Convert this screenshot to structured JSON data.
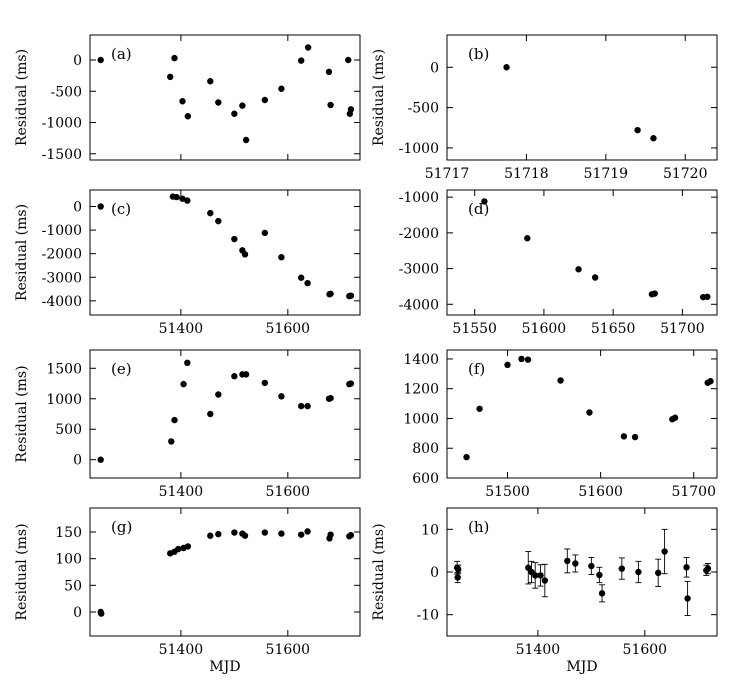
{
  "figure": {
    "xlabel_bottom": "MJD"
  },
  "chart_data": [
    {
      "id": "a",
      "type": "scatter",
      "label": "(a)",
      "ylabel": "Residual (ms)",
      "xlim": [
        51230,
        51735
      ],
      "ylim": [
        -1600,
        400
      ],
      "xticks": [
        51400,
        51600
      ],
      "xtick_labels": [
        "",
        ""
      ],
      "yticks": [
        -1500,
        -1000,
        -500,
        0
      ],
      "ytick_labels": [
        "-1500",
        "-1000",
        "-500",
        "0"
      ],
      "points": [
        {
          "x": 51250,
          "y": 0
        },
        {
          "x": 51380,
          "y": -270
        },
        {
          "x": 51388,
          "y": 30
        },
        {
          "x": 51403,
          "y": -660
        },
        {
          "x": 51413,
          "y": -900
        },
        {
          "x": 51455,
          "y": -340
        },
        {
          "x": 51470,
          "y": -680
        },
        {
          "x": 51500,
          "y": -860
        },
        {
          "x": 51515,
          "y": -730
        },
        {
          "x": 51522,
          "y": -1280
        },
        {
          "x": 51557,
          "y": -640
        },
        {
          "x": 51588,
          "y": -460
        },
        {
          "x": 51625,
          "y": -10
        },
        {
          "x": 51638,
          "y": 200
        },
        {
          "x": 51677,
          "y": -190
        },
        {
          "x": 51680,
          "y": -720
        },
        {
          "x": 51713,
          "y": 0
        },
        {
          "x": 51716,
          "y": -860
        },
        {
          "x": 51718,
          "y": -790
        }
      ]
    },
    {
      "id": "b",
      "type": "scatter",
      "label": "(b)",
      "ylabel": "Residual (ms)",
      "xlim": [
        51717,
        51720.4
      ],
      "ylim": [
        -1150,
        400
      ],
      "xticks": [
        51717,
        51718,
        51719,
        51720
      ],
      "xtick_labels": [
        "51717",
        "51718",
        "51719",
        "51720"
      ],
      "yticks": [
        -1000,
        -500,
        0
      ],
      "ytick_labels": [
        "-1000",
        "-500",
        "0"
      ],
      "points": [
        {
          "x": 51717.75,
          "y": 0
        },
        {
          "x": 51719.4,
          "y": -780
        },
        {
          "x": 51719.6,
          "y": -880
        }
      ]
    },
    {
      "id": "c",
      "type": "scatter",
      "label": "(c)",
      "ylabel": "Residual (ms)",
      "xlim": [
        51230,
        51735
      ],
      "ylim": [
        -4600,
        700
      ],
      "xticks": [
        51400,
        51600
      ],
      "xtick_labels": [
        "51400",
        "51600"
      ],
      "yticks": [
        -4000,
        -3000,
        -2000,
        -1000,
        0
      ],
      "ytick_labels": [
        "-4000",
        "-3000",
        "-2000",
        "-1000",
        "0"
      ],
      "points": [
        {
          "x": 51250,
          "y": 0
        },
        {
          "x": 51385,
          "y": 420
        },
        {
          "x": 51392,
          "y": 400
        },
        {
          "x": 51403,
          "y": 330
        },
        {
          "x": 51412,
          "y": 250
        },
        {
          "x": 51455,
          "y": -280
        },
        {
          "x": 51470,
          "y": -620
        },
        {
          "x": 51500,
          "y": -1380
        },
        {
          "x": 51515,
          "y": -1860
        },
        {
          "x": 51520,
          "y": -2030
        },
        {
          "x": 51557,
          "y": -1120
        },
        {
          "x": 51588,
          "y": -2150
        },
        {
          "x": 51625,
          "y": -3020
        },
        {
          "x": 51637,
          "y": -3250
        },
        {
          "x": 51678,
          "y": -3720
        },
        {
          "x": 51680,
          "y": -3700
        },
        {
          "x": 51715,
          "y": -3800
        },
        {
          "x": 51718,
          "y": -3780
        }
      ]
    },
    {
      "id": "d",
      "type": "scatter",
      "label": "(d)",
      "ylabel": "",
      "xlim": [
        51530,
        51725
      ],
      "ylim": [
        -4300,
        -800
      ],
      "xticks": [
        51550,
        51600,
        51650,
        51700
      ],
      "xtick_labels": [
        "51550",
        "51600",
        "51650",
        "51700"
      ],
      "yticks": [
        -4000,
        -3000,
        -2000,
        -1000
      ],
      "ytick_labels": [
        "-4000",
        "-3000",
        "-2000",
        "-1000"
      ],
      "points": [
        {
          "x": 51557,
          "y": -1120
        },
        {
          "x": 51588,
          "y": -2150
        },
        {
          "x": 51625,
          "y": -3020
        },
        {
          "x": 51637,
          "y": -3250
        },
        {
          "x": 51678,
          "y": -3720
        },
        {
          "x": 51680,
          "y": -3700
        },
        {
          "x": 51715,
          "y": -3800
        },
        {
          "x": 51718,
          "y": -3790
        }
      ]
    },
    {
      "id": "e",
      "type": "scatter",
      "label": "(e)",
      "ylabel": "Residual (ms)",
      "xlim": [
        51230,
        51735
      ],
      "ylim": [
        -300,
        1800
      ],
      "xticks": [
        51400,
        51600
      ],
      "xtick_labels": [
        "51400",
        "51600"
      ],
      "yticks": [
        0,
        500,
        1000,
        1500
      ],
      "ytick_labels": [
        "0",
        "500",
        "1000",
        "1500"
      ],
      "points": [
        {
          "x": 51250,
          "y": 0
        },
        {
          "x": 51382,
          "y": 300
        },
        {
          "x": 51388,
          "y": 650
        },
        {
          "x": 51405,
          "y": 1240
        },
        {
          "x": 51412,
          "y": 1590
        },
        {
          "x": 51455,
          "y": 750
        },
        {
          "x": 51470,
          "y": 1070
        },
        {
          "x": 51500,
          "y": 1370
        },
        {
          "x": 51515,
          "y": 1400
        },
        {
          "x": 51522,
          "y": 1400
        },
        {
          "x": 51557,
          "y": 1260
        },
        {
          "x": 51588,
          "y": 1040
        },
        {
          "x": 51625,
          "y": 880
        },
        {
          "x": 51637,
          "y": 880
        },
        {
          "x": 51677,
          "y": 1000
        },
        {
          "x": 51680,
          "y": 1010
        },
        {
          "x": 51715,
          "y": 1240
        },
        {
          "x": 51718,
          "y": 1250
        }
      ]
    },
    {
      "id": "f",
      "type": "scatter",
      "label": "(f)",
      "ylabel": "",
      "xlim": [
        51435,
        51725
      ],
      "ylim": [
        600,
        1460
      ],
      "xticks": [
        51500,
        51600,
        51700
      ],
      "xtick_labels": [
        "51500",
        "51600",
        "51700"
      ],
      "yticks": [
        600,
        800,
        1000,
        1200,
        1400
      ],
      "ytick_labels": [
        "600",
        "800",
        "1000",
        "1200",
        "1400"
      ],
      "points": [
        {
          "x": 51456,
          "y": 740
        },
        {
          "x": 51470,
          "y": 1065
        },
        {
          "x": 51500,
          "y": 1360
        },
        {
          "x": 51515,
          "y": 1400
        },
        {
          "x": 51522,
          "y": 1395
        },
        {
          "x": 51557,
          "y": 1255
        },
        {
          "x": 51588,
          "y": 1040
        },
        {
          "x": 51625,
          "y": 880
        },
        {
          "x": 51637,
          "y": 875
        },
        {
          "x": 51677,
          "y": 995
        },
        {
          "x": 51680,
          "y": 1005
        },
        {
          "x": 51715,
          "y": 1240
        },
        {
          "x": 51718,
          "y": 1250
        }
      ]
    },
    {
      "id": "g",
      "type": "scatter",
      "label": "(g)",
      "ylabel": "Residual (ms)",
      "xlim": [
        51230,
        51735
      ],
      "ylim": [
        -45,
        195
      ],
      "xticks": [
        51400,
        51600
      ],
      "xtick_labels": [
        "51400",
        "51600"
      ],
      "yticks": [
        0,
        50,
        100,
        150
      ],
      "ytick_labels": [
        "0",
        "50",
        "100",
        "150"
      ],
      "points": [
        {
          "x": 51250,
          "y": 0
        },
        {
          "x": 51251,
          "y": -3
        },
        {
          "x": 51380,
          "y": 110
        },
        {
          "x": 51388,
          "y": 113
        },
        {
          "x": 51395,
          "y": 118
        },
        {
          "x": 51405,
          "y": 120
        },
        {
          "x": 51413,
          "y": 123
        },
        {
          "x": 51455,
          "y": 143
        },
        {
          "x": 51470,
          "y": 146
        },
        {
          "x": 51500,
          "y": 149
        },
        {
          "x": 51515,
          "y": 147
        },
        {
          "x": 51520,
          "y": 143
        },
        {
          "x": 51557,
          "y": 149
        },
        {
          "x": 51588,
          "y": 147
        },
        {
          "x": 51625,
          "y": 145
        },
        {
          "x": 51637,
          "y": 151
        },
        {
          "x": 51678,
          "y": 138
        },
        {
          "x": 51680,
          "y": 145
        },
        {
          "x": 51715,
          "y": 142
        },
        {
          "x": 51718,
          "y": 144
        }
      ]
    },
    {
      "id": "h",
      "type": "scatter",
      "label": "(h)",
      "ylabel": "Residual (ms)",
      "xlim": [
        51230,
        51735
      ],
      "ylim": [
        -15,
        15
      ],
      "xticks": [
        51400,
        51600
      ],
      "xtick_labels": [
        "51400",
        "51600"
      ],
      "yticks": [
        -10,
        0,
        10
      ],
      "ytick_labels": [
        "-10",
        "0",
        "10"
      ],
      "points": [
        {
          "x": 51249,
          "y": 1.0,
          "err": 1.5
        },
        {
          "x": 51250,
          "y": -1.3,
          "err": 1.2
        },
        {
          "x": 51251,
          "y": 0.6,
          "err": 1.0
        },
        {
          "x": 51382,
          "y": 1.0,
          "err": 3.8
        },
        {
          "x": 51388,
          "y": 0.0,
          "err": 2.5
        },
        {
          "x": 51395,
          "y": -0.8,
          "err": 3.0
        },
        {
          "x": 51405,
          "y": -0.8,
          "err": 2.5
        },
        {
          "x": 51413,
          "y": -2.0,
          "err": 3.8
        },
        {
          "x": 51455,
          "y": 2.6,
          "err": 2.8
        },
        {
          "x": 51470,
          "y": 2.0,
          "err": 2.0
        },
        {
          "x": 51500,
          "y": 1.4,
          "err": 2.0
        },
        {
          "x": 51515,
          "y": -0.7,
          "err": 1.8
        },
        {
          "x": 51520,
          "y": -5.0,
          "err": 2.0
        },
        {
          "x": 51557,
          "y": 0.8,
          "err": 2.5
        },
        {
          "x": 51588,
          "y": 0.0,
          "err": 2.5
        },
        {
          "x": 51625,
          "y": -0.2,
          "err": 3.2
        },
        {
          "x": 51637,
          "y": 4.8,
          "err": 5.2
        },
        {
          "x": 51678,
          "y": 1.1,
          "err": 2.3
        },
        {
          "x": 51680,
          "y": -6.2,
          "err": 4.0
        },
        {
          "x": 51715,
          "y": 0.4,
          "err": 1.2
        },
        {
          "x": 51718,
          "y": 0.8,
          "err": 1.2
        }
      ]
    }
  ]
}
